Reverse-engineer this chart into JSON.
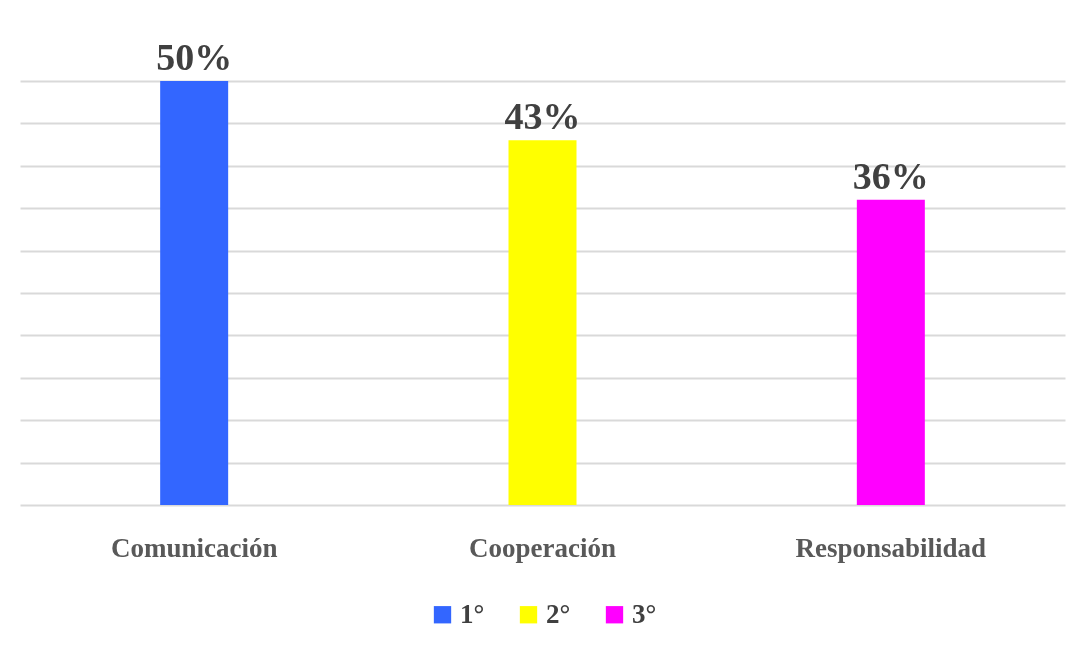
{
  "chart_data": {
    "type": "bar",
    "categories": [
      "Comunicación",
      "Cooperación",
      "Responsabilidad"
    ],
    "series": [
      {
        "name": "1°",
        "color": "#3366ff",
        "values": [
          50,
          null,
          null
        ],
        "value_labels": [
          "50%",
          null,
          null
        ]
      },
      {
        "name": "2°",
        "color": "#ffff00",
        "values": [
          null,
          43,
          null
        ],
        "value_labels": [
          null,
          "43%",
          null
        ]
      },
      {
        "name": "3°",
        "color": "#ff00ff",
        "values": [
          null,
          null,
          36
        ],
        "value_labels": [
          null,
          null,
          "36%"
        ]
      }
    ],
    "grid": "y",
    "legend": "bottom",
    "tick_labels": "x"
  }
}
